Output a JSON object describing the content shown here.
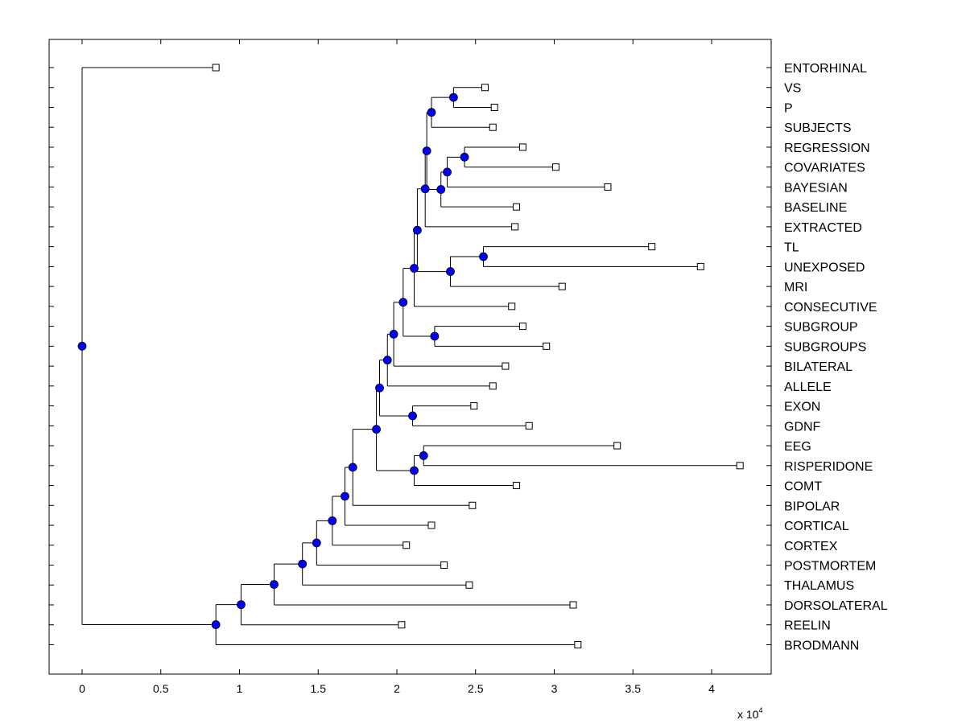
{
  "chart_data": {
    "type": "dendrogram",
    "orientation": "horizontal",
    "xlim": [
      -0.2,
      4.4
    ],
    "xticks": [
      0,
      0.5,
      1,
      1.5,
      2,
      2.5,
      3,
      3.5,
      4
    ],
    "xtick_labels": [
      "0",
      "0.5",
      "1",
      "1.5",
      "2",
      "2.5",
      "3",
      "3.5",
      "4"
    ],
    "x_multiplier_label": "x 10",
    "x_multiplier_exponent": "4",
    "leaves": [
      "ENTORHINAL",
      "VS",
      "P",
      "SUBJECTS",
      "REGRESSION",
      "COVARIATES",
      "BAYESIAN",
      "BASELINE",
      "EXTRACTED",
      "TL",
      "UNEXPOSED",
      "MRI",
      "CONSECUTIVE",
      "SUBGROUP",
      "SUBGROUPS",
      "BILATERAL",
      "ALLELE",
      "EXON",
      "GDNF",
      "EEG",
      "RISPERIDONE",
      "COMT",
      "BIPOLAR",
      "CORTICAL",
      "CORTEX",
      "POSTMORTEM",
      "THALAMUS",
      "DORSOLATERAL",
      "REELIN",
      "BRODMANN"
    ],
    "leaf_values": [
      0.85,
      2.56,
      2.62,
      2.61,
      2.8,
      3.01,
      3.34,
      2.76,
      2.75,
      3.62,
      3.93,
      3.05,
      2.73,
      2.8,
      2.95,
      2.69,
      2.61,
      2.49,
      2.84,
      3.4,
      4.18,
      2.76,
      2.48,
      2.22,
      2.06,
      2.3,
      2.46,
      3.12,
      2.03,
      3.15
    ],
    "merges": [
      {
        "a": "L1",
        "b": "L2",
        "value": 2.36
      },
      {
        "a": "N0",
        "b": "L3",
        "value": 2.22
      },
      {
        "a": "L4",
        "b": "L5",
        "value": 2.43
      },
      {
        "a": "N2",
        "b": "L6",
        "value": 2.32
      },
      {
        "a": "N3",
        "b": "L7",
        "value": 2.28
      },
      {
        "a": "N1",
        "b": "N4",
        "value": 2.19
      },
      {
        "a": "N5",
        "b": "L8",
        "value": 2.18
      },
      {
        "a": "L9",
        "b": "L10",
        "value": 2.55
      },
      {
        "a": "N7",
        "b": "L11",
        "value": 2.34
      },
      {
        "a": "N6",
        "b": "N8",
        "value": 2.13
      },
      {
        "a": "N9",
        "b": "L12",
        "value": 2.11
      },
      {
        "a": "L13",
        "b": "L14",
        "value": 2.24
      },
      {
        "a": "N10",
        "b": "N11",
        "value": 2.04
      },
      {
        "a": "N12",
        "b": "L15",
        "value": 1.98
      },
      {
        "a": "N13",
        "b": "L16",
        "value": 1.94
      },
      {
        "a": "L17",
        "b": "L18",
        "value": 2.1
      },
      {
        "a": "N14",
        "b": "N15",
        "value": 1.89
      },
      {
        "a": "L19",
        "b": "L20",
        "value": 2.17
      },
      {
        "a": "N17",
        "b": "L21",
        "value": 2.11
      },
      {
        "a": "N16",
        "b": "N18",
        "value": 1.87
      },
      {
        "a": "N19",
        "b": "L22",
        "value": 1.72
      },
      {
        "a": "N20",
        "b": "L23",
        "value": 1.67
      },
      {
        "a": "N21",
        "b": "L24",
        "value": 1.59
      },
      {
        "a": "N22",
        "b": "L25",
        "value": 1.49
      },
      {
        "a": "N23",
        "b": "L26",
        "value": 1.4
      },
      {
        "a": "N24",
        "b": "L27",
        "value": 1.22
      },
      {
        "a": "N25",
        "b": "L28",
        "value": 1.01
      },
      {
        "a": "N26",
        "b": "L29",
        "value": 0.85
      },
      {
        "a": "L0",
        "b": "N27",
        "value": 0.0
      }
    ],
    "leaf_marker": "open-square",
    "node_marker": "filled-circle",
    "node_color": "#0000ff",
    "line_color": "#000000",
    "grid": false,
    "legend": "none"
  }
}
